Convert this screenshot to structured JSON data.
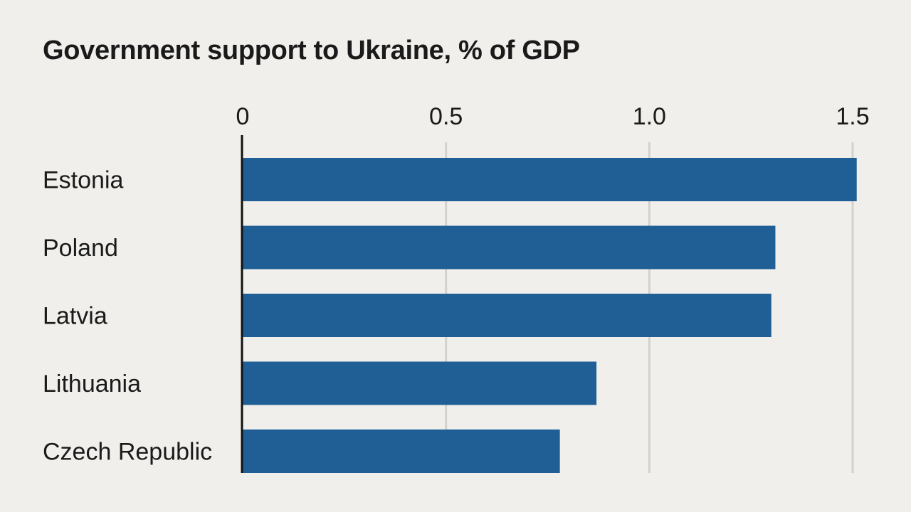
{
  "chart_data": {
    "type": "bar",
    "orientation": "horizontal",
    "title": "Government support to Ukraine, % of GDP",
    "categories": [
      "Estonia",
      "Poland",
      "Latvia",
      "Lithuania",
      "Czech Republic"
    ],
    "values": [
      1.51,
      1.31,
      1.3,
      0.87,
      0.78
    ],
    "xlim": [
      0,
      1.5
    ],
    "xticks": [
      0,
      0.5,
      1.0,
      1.5
    ],
    "xtick_labels": [
      "0",
      "0.5",
      "1.0",
      "1.5"
    ],
    "xlabel": "",
    "ylabel": "",
    "grid": true,
    "legend": "none",
    "colors": {
      "bar": "#1f5f96",
      "grid": "#d3d1cc",
      "axis": "#111111",
      "background": "#f0efeb"
    }
  }
}
